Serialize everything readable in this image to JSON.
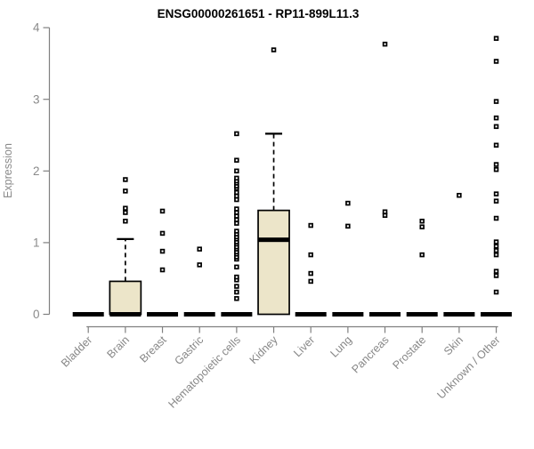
{
  "chart_data": {
    "type": "boxplot",
    "title": "ENSG00000261651 - RP11-899L11.3",
    "ylabel": "Expression",
    "xlabel": "",
    "ylim": [
      0,
      4
    ],
    "yticks": [
      0,
      1,
      2,
      3,
      4
    ],
    "grid": false,
    "legend": "none",
    "colors": {
      "box_fill": "#ECE5C9",
      "box_border": "#000000",
      "median": "#000000",
      "whisker": "#000000",
      "point_stroke": "#000000",
      "point_fill": "#ffffff",
      "axis": "#808080",
      "label_gray": "#8a8a8a",
      "title_color": "#000000"
    },
    "categories": [
      "Bladder",
      "Brain",
      "Breast",
      "Gastric",
      "Hematopoietic cells",
      "Kidney",
      "Liver",
      "Lung",
      "Pancreas",
      "Prostate",
      "Skin",
      "Unknown / Other"
    ],
    "series": [
      {
        "label": "Bladder",
        "q1": 0,
        "median": 0,
        "q3": 0,
        "whisker_low": 0,
        "whisker_high": 0,
        "outliers": []
      },
      {
        "label": "Brain",
        "q1": 0,
        "median": 0,
        "q3": 0.46,
        "whisker_low": 0,
        "whisker_high": 1.05,
        "outliers": [
          1.3,
          1.42,
          1.48,
          1.72,
          1.88
        ]
      },
      {
        "label": "Breast",
        "q1": 0,
        "median": 0,
        "q3": 0,
        "whisker_low": 0,
        "whisker_high": 0,
        "outliers": [
          0.62,
          0.88,
          1.13,
          1.44
        ]
      },
      {
        "label": "Gastric",
        "q1": 0,
        "median": 0,
        "q3": 0,
        "whisker_low": 0,
        "whisker_high": 0,
        "outliers": [
          0.69,
          0.91
        ]
      },
      {
        "label": "Hematopoietic cells",
        "q1": 0,
        "median": 0,
        "q3": 0,
        "whisker_low": 0,
        "whisker_high": 0,
        "outliers": [
          0.22,
          0.31,
          0.39,
          0.48,
          0.52,
          0.66,
          0.77,
          0.8,
          0.84,
          0.87,
          0.91,
          0.94,
          0.98,
          1.01,
          1.05,
          1.08,
          1.12,
          1.16,
          1.27,
          1.32,
          1.37,
          1.42,
          1.47,
          1.6,
          1.65,
          1.7,
          1.76,
          1.79,
          1.83,
          1.86,
          1.9,
          2.0,
          2.15,
          2.52
        ]
      },
      {
        "label": "Kidney",
        "q1": 0,
        "median": 1.04,
        "q3": 1.45,
        "whisker_low": 0,
        "whisker_high": 2.52,
        "outliers": [
          3.69
        ]
      },
      {
        "label": "Liver",
        "q1": 0,
        "median": 0,
        "q3": 0,
        "whisker_low": 0,
        "whisker_high": 0,
        "outliers": [
          0.46,
          0.57,
          0.83,
          1.24
        ]
      },
      {
        "label": "Lung",
        "q1": 0,
        "median": 0,
        "q3": 0,
        "whisker_low": 0,
        "whisker_high": 0,
        "outliers": [
          1.23,
          1.55
        ]
      },
      {
        "label": "Pancreas",
        "q1": 0,
        "median": 0,
        "q3": 0,
        "whisker_low": 0,
        "whisker_high": 0,
        "outliers": [
          1.38,
          1.43,
          3.77
        ]
      },
      {
        "label": "Prostate",
        "q1": 0,
        "median": 0,
        "q3": 0,
        "whisker_low": 0,
        "whisker_high": 0,
        "outliers": [
          0.83,
          1.22,
          1.3
        ]
      },
      {
        "label": "Skin",
        "q1": 0,
        "median": 0,
        "q3": 0,
        "whisker_low": 0,
        "whisker_high": 0,
        "outliers": [
          1.66
        ]
      },
      {
        "label": "Unknown / Other",
        "q1": 0,
        "median": 0,
        "q3": 0,
        "whisker_low": 0,
        "whisker_high": 0,
        "outliers": [
          0.31,
          0.54,
          0.6,
          0.83,
          0.89,
          0.95,
          1.01,
          1.34,
          1.58,
          1.68,
          2.02,
          2.09,
          2.36,
          2.62,
          2.74,
          2.97,
          3.53,
          3.85
        ]
      }
    ]
  }
}
